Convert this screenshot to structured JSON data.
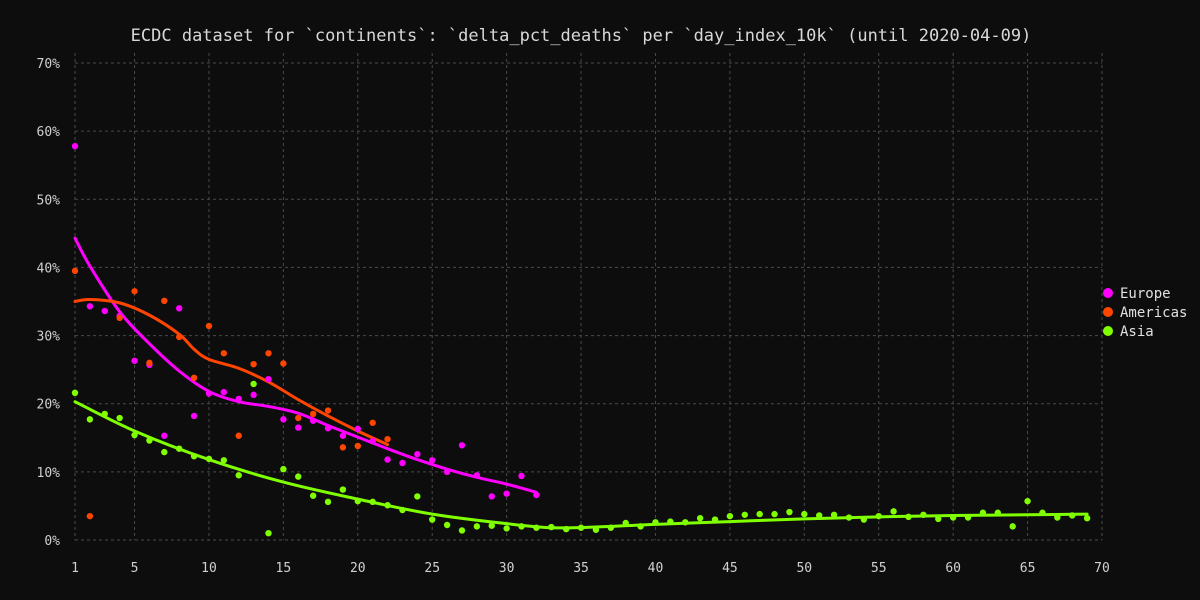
{
  "chart_data": {
    "type": "scatter",
    "title": "ECDC dataset for `continents`: `delta_pct_deaths` per `day_index_10k` (until 2020-04-09)",
    "xlabel": "",
    "ylabel": "",
    "xlim": [
      1,
      70
    ],
    "ylim": [
      0,
      70
    ],
    "x_ticks": [
      1,
      5,
      10,
      15,
      20,
      25,
      30,
      35,
      40,
      45,
      50,
      55,
      60,
      65,
      70
    ],
    "y_ticks": [
      0,
      10,
      20,
      30,
      40,
      50,
      60,
      70
    ],
    "y_tick_labels": [
      "0%",
      "10%",
      "20%",
      "30%",
      "40%",
      "50%",
      "60%",
      "70%"
    ],
    "grid": true,
    "legend_position": "right",
    "series": [
      {
        "name": "Europe",
        "color": "#ff00ff",
        "points": [
          [
            1,
            57.8
          ],
          [
            2,
            34.3
          ],
          [
            3,
            33.6
          ],
          [
            4,
            32.9
          ],
          [
            5,
            26.3
          ],
          [
            6,
            25.7
          ],
          [
            7,
            15.3
          ],
          [
            8,
            34.0
          ],
          [
            9,
            18.2
          ],
          [
            10,
            21.5
          ],
          [
            11,
            21.7
          ],
          [
            12,
            20.7
          ],
          [
            13,
            21.3
          ],
          [
            14,
            23.6
          ],
          [
            15,
            17.7
          ],
          [
            16,
            16.5
          ],
          [
            17,
            17.5
          ],
          [
            18,
            16.4
          ],
          [
            19,
            15.3
          ],
          [
            20,
            16.3
          ],
          [
            21,
            14.5
          ],
          [
            22,
            11.8
          ],
          [
            23,
            11.3
          ],
          [
            24,
            12.6
          ],
          [
            25,
            11.7
          ],
          [
            26,
            10.0
          ],
          [
            27,
            13.9
          ],
          [
            28,
            9.5
          ],
          [
            29,
            6.4
          ],
          [
            30,
            6.8
          ],
          [
            31,
            9.4
          ],
          [
            32,
            6.6
          ]
        ],
        "trend": [
          [
            1,
            44.3
          ],
          [
            2,
            40.2
          ],
          [
            4,
            33.5
          ],
          [
            6,
            28.8
          ],
          [
            8,
            24.8
          ],
          [
            10,
            21.8
          ],
          [
            12,
            20.3
          ],
          [
            14,
            19.6
          ],
          [
            16,
            18.6
          ],
          [
            18,
            16.8
          ],
          [
            20,
            15.1
          ],
          [
            22,
            13.4
          ],
          [
            24,
            11.8
          ],
          [
            26,
            10.4
          ],
          [
            28,
            9.2
          ],
          [
            30,
            8.2
          ],
          [
            32,
            7.0
          ]
        ]
      },
      {
        "name": "Americas",
        "color": "#ff4500",
        "points": [
          [
            1,
            39.5
          ],
          [
            2,
            3.5
          ],
          [
            4,
            32.6
          ],
          [
            5,
            36.5
          ],
          [
            6,
            26.0
          ],
          [
            7,
            35.1
          ],
          [
            8,
            29.8
          ],
          [
            9,
            23.8
          ],
          [
            10,
            31.4
          ],
          [
            11,
            27.4
          ],
          [
            12,
            15.3
          ],
          [
            13,
            25.8
          ],
          [
            14,
            27.4
          ],
          [
            15,
            25.9
          ],
          [
            16,
            17.9
          ],
          [
            17,
            18.5
          ],
          [
            18,
            19.0
          ],
          [
            19,
            13.6
          ],
          [
            20,
            13.8
          ],
          [
            21,
            17.2
          ],
          [
            22,
            14.8
          ]
        ],
        "trend": [
          [
            1,
            35.0
          ],
          [
            2,
            35.3
          ],
          [
            4,
            34.8
          ],
          [
            6,
            33.0
          ],
          [
            8,
            30.2
          ],
          [
            9,
            28.0
          ],
          [
            10,
            26.5
          ],
          [
            12,
            25.2
          ],
          [
            14,
            23.2
          ],
          [
            16,
            20.6
          ],
          [
            18,
            18.2
          ],
          [
            20,
            16.0
          ],
          [
            22,
            14.0
          ]
        ]
      },
      {
        "name": "Asia",
        "color": "#80ff00",
        "points": [
          [
            1,
            21.6
          ],
          [
            2,
            17.7
          ],
          [
            3,
            18.5
          ],
          [
            4,
            17.9
          ],
          [
            5,
            15.4
          ],
          [
            6,
            14.6
          ],
          [
            7,
            12.9
          ],
          [
            8,
            13.4
          ],
          [
            9,
            12.3
          ],
          [
            10,
            11.9
          ],
          [
            11,
            11.7
          ],
          [
            12,
            9.5
          ],
          [
            13,
            22.9
          ],
          [
            14,
            1.0
          ],
          [
            15,
            10.4
          ],
          [
            16,
            9.3
          ],
          [
            17,
            6.5
          ],
          [
            18,
            5.6
          ],
          [
            19,
            7.4
          ],
          [
            20,
            5.7
          ],
          [
            21,
            5.6
          ],
          [
            22,
            5.1
          ],
          [
            23,
            4.4
          ],
          [
            24,
            6.4
          ],
          [
            25,
            3.0
          ],
          [
            26,
            2.2
          ],
          [
            27,
            1.4
          ],
          [
            28,
            2.0
          ],
          [
            29,
            2.1
          ],
          [
            30,
            1.7
          ],
          [
            31,
            2.0
          ],
          [
            32,
            1.8
          ],
          [
            33,
            1.9
          ],
          [
            34,
            1.6
          ],
          [
            35,
            1.8
          ],
          [
            36,
            1.5
          ],
          [
            37,
            1.8
          ],
          [
            38,
            2.5
          ],
          [
            39,
            2.0
          ],
          [
            40,
            2.6
          ],
          [
            41,
            2.7
          ],
          [
            42,
            2.6
          ],
          [
            43,
            3.2
          ],
          [
            44,
            3.0
          ],
          [
            45,
            3.5
          ],
          [
            46,
            3.7
          ],
          [
            47,
            3.8
          ],
          [
            48,
            3.8
          ],
          [
            49,
            4.1
          ],
          [
            50,
            3.8
          ],
          [
            51,
            3.6
          ],
          [
            52,
            3.7
          ],
          [
            53,
            3.3
          ],
          [
            54,
            3.0
          ],
          [
            55,
            3.5
          ],
          [
            56,
            4.2
          ],
          [
            57,
            3.4
          ],
          [
            58,
            3.7
          ],
          [
            59,
            3.1
          ],
          [
            60,
            3.3
          ],
          [
            61,
            3.3
          ],
          [
            62,
            4.0
          ],
          [
            63,
            4.0
          ],
          [
            64,
            2.0
          ],
          [
            65,
            5.7
          ],
          [
            66,
            4.0
          ],
          [
            67,
            3.3
          ],
          [
            68,
            3.6
          ],
          [
            69,
            3.2
          ]
        ],
        "trend": [
          [
            1,
            20.3
          ],
          [
            5,
            16.0
          ],
          [
            10,
            11.8
          ],
          [
            15,
            8.5
          ],
          [
            20,
            6.0
          ],
          [
            25,
            3.8
          ],
          [
            30,
            2.4
          ],
          [
            33,
            1.8
          ],
          [
            36,
            1.9
          ],
          [
            40,
            2.3
          ],
          [
            45,
            2.7
          ],
          [
            50,
            3.1
          ],
          [
            55,
            3.4
          ],
          [
            60,
            3.6
          ],
          [
            65,
            3.7
          ],
          [
            69,
            3.8
          ]
        ]
      }
    ]
  }
}
